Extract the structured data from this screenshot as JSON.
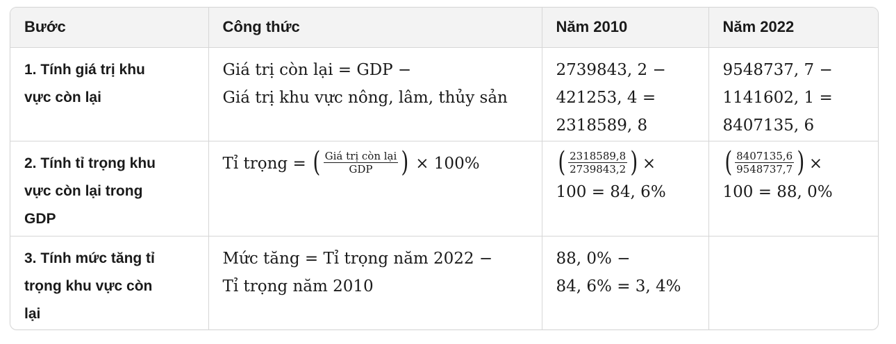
{
  "table": {
    "headers": [
      "Bước",
      "Công thức",
      "Năm 2010",
      "Năm 2022"
    ],
    "rows": [
      {
        "step": [
          "1. Tính giá trị khu",
          "vực còn lại"
        ],
        "formula": [
          "Giá trị còn lại = GDP −",
          "Giá trị khu vực nông, lâm, thủy sản"
        ],
        "y2010": [
          "2739843, 2 −",
          "421253, 4 =",
          "2318589, 8"
        ],
        "y2022": [
          "9548737, 7 −",
          "1141602, 1 =",
          "8407135, 6"
        ]
      },
      {
        "step": [
          "2. Tính tỉ trọng khu",
          "vực còn lại trong",
          "GDP"
        ],
        "formula": {
          "prefix": "Tỉ trọng = ",
          "frac_num": "Giá trị còn lại",
          "frac_den": "GDP",
          "suffix": " × 100%"
        },
        "y2010": {
          "frac_num": "2318589,8",
          "frac_den": "2739843,2",
          "times": "×",
          "line2": "100 = 84, 6%"
        },
        "y2022": {
          "frac_num": "8407135,6",
          "frac_den": "9548737,7",
          "times": "×",
          "line2": "100 = 88, 0%"
        }
      },
      {
        "step": [
          "3. Tính mức tăng tỉ",
          "trọng khu vực còn",
          "lại"
        ],
        "formula": [
          "Mức tăng = Tỉ trọng năm 2022 −",
          "Tỉ trọng năm 2010"
        ],
        "y2010": [
          "88, 0% −",
          "84, 6% = 3, 4%"
        ],
        "y2022": []
      }
    ]
  }
}
